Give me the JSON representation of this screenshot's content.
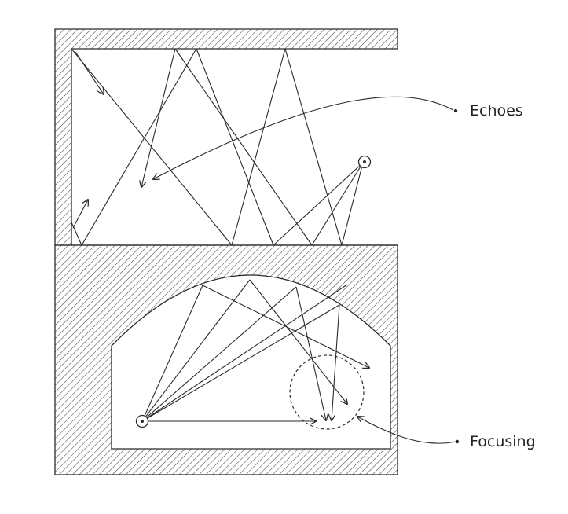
{
  "labels": {
    "echoes": "Echoes",
    "focusing": "Focusing"
  },
  "colors": {
    "ink": "#2a2a2a",
    "hatch": "#444444",
    "background": "#ffffff"
  }
}
